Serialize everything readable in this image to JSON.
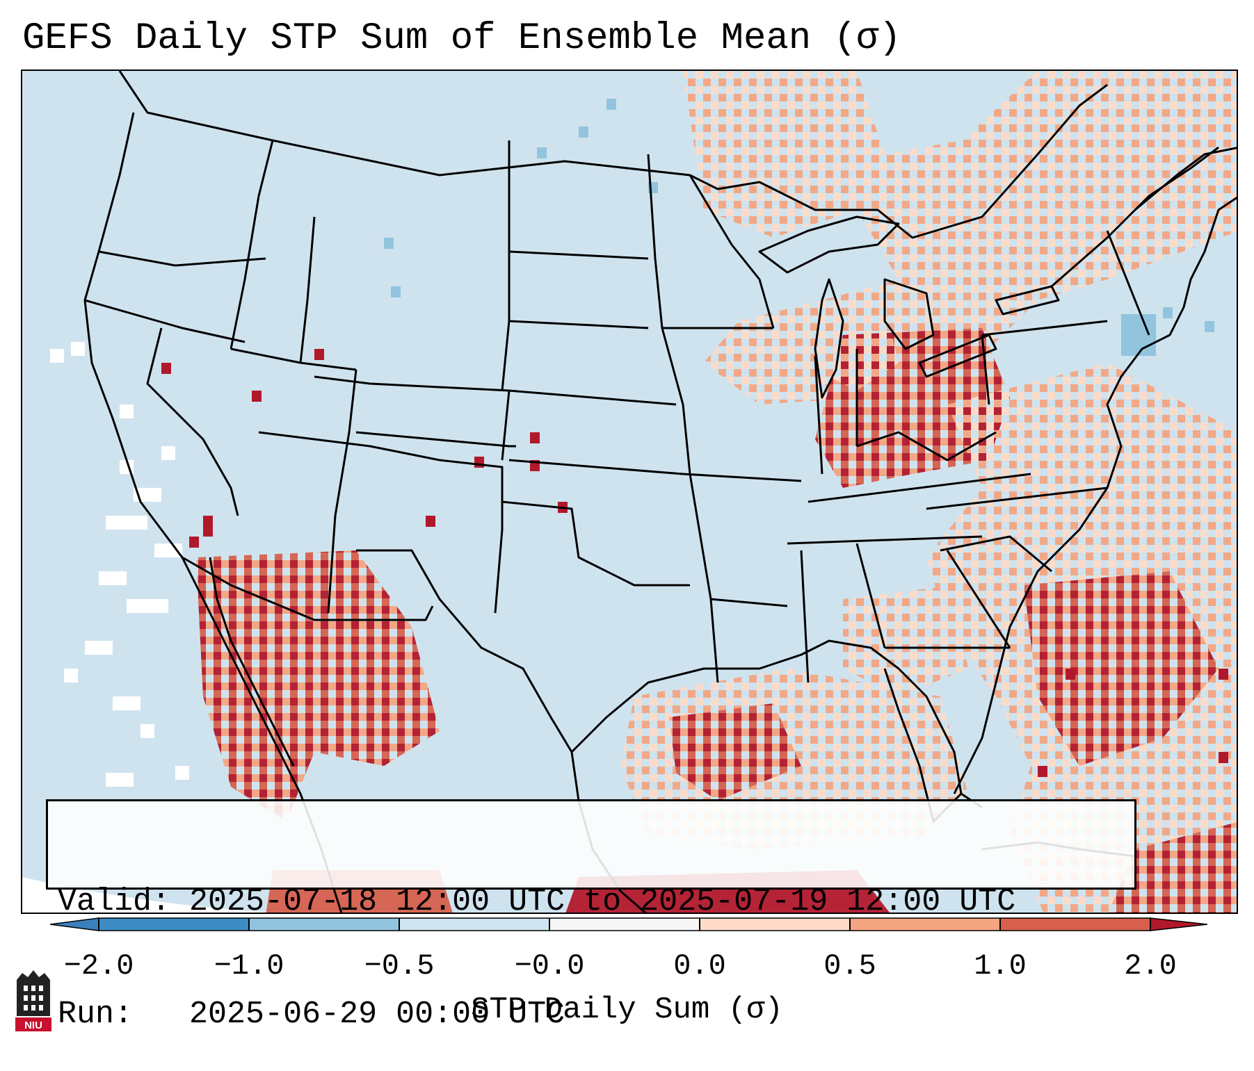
{
  "title": "GEFS Daily STP Sum of Ensemble Mean (σ)",
  "info": {
    "valid_label": "Valid:",
    "valid_text": "2025-07-18 12:00 UTC to 2025-07-19 12:00 UTC",
    "run_label": "Run:",
    "run_text": "2025-06-29 00:00 UTC"
  },
  "colorbar": {
    "label": "STP Daily Sum (σ)",
    "ticks": [
      "−2.0",
      "−1.0",
      "−0.5",
      "−0.0",
      "0.0",
      "0.5",
      "1.0",
      "2.0"
    ],
    "bins": [
      {
        "range": "< -2.0",
        "color": "#3b80bd"
      },
      {
        "range": "-2.0 to -1.0",
        "color": "#3d8dc4"
      },
      {
        "range": "-1.0 to -0.5",
        "color": "#92c4de"
      },
      {
        "range": "-0.5 to -0.0",
        "color": "#d1e5f0"
      },
      {
        "range": "-0.0 to 0.0",
        "color": "#f7f7f7"
      },
      {
        "range": "0.0 to 0.5",
        "color": "#fddbc7"
      },
      {
        "range": "0.5 to 1.0",
        "color": "#f4a582"
      },
      {
        "range": "1.0 to 2.0",
        "color": "#d6604d"
      },
      {
        "range": "> 2.0",
        "color": "#b2182b"
      }
    ]
  },
  "logo": {
    "text": "NIU",
    "name": "niu-logo"
  }
}
